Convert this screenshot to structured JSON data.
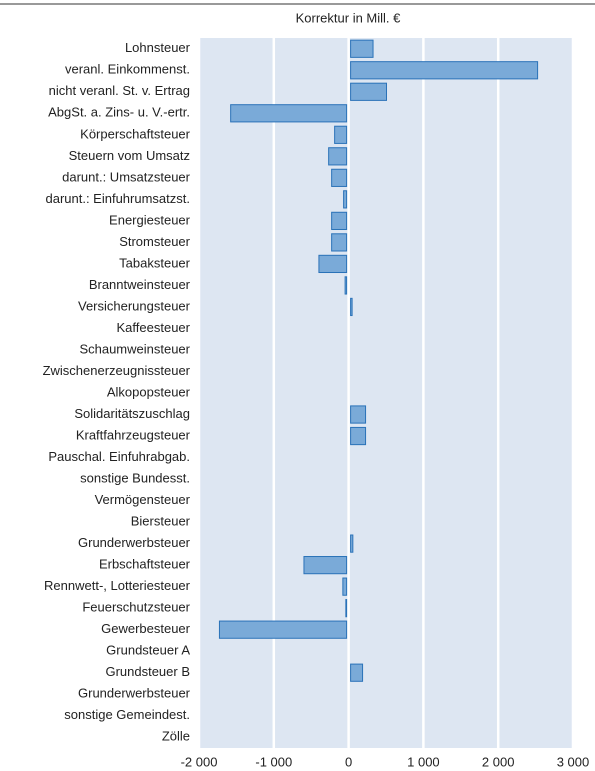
{
  "chart_data": {
    "type": "barh",
    "title": "Korrektur in Mill. €",
    "categories": [
      "Lohnsteuer",
      "veranl. Einkommenst.",
      "nicht veranl. St. v. Ertrag",
      "AbgSt. a. Zins- u. V.-ertr.",
      "Körperschaftsteuer",
      "Steuern vom Umsatz",
      "darunt.: Umsatzsteuer",
      "darunt.: Einfuhrumsatzst.",
      "Energiesteuer",
      "Stromsteuer",
      "Tabaksteuer",
      "Branntweinsteuer",
      "Versicherungsteuer",
      "Kaffeesteuer",
      "Schaumweinsteuer",
      "Zwischenerzeugnissteuer",
      "Alkopopsteuer",
      "Solidaritätszuschlag",
      "Kraftfahrzeugsteuer",
      "Pauschal. Einfuhrabgab.",
      "sonstige Bundesst.",
      "Vermögensteuer",
      "Biersteuer",
      "Grunderwerbsteuer",
      "Erbschaftsteuer",
      "Rennwett-, Lotteriesteuer",
      "Feuerschutzsteuer",
      "Gewerbesteuer",
      "Grundsteuer A",
      "Grundsteuer B",
      "Grunderwerbsteuer",
      "sonstige Gemeindest.",
      "Zölle"
    ],
    "values": [
      300,
      2500,
      480,
      -1550,
      -160,
      -240,
      -200,
      -40,
      -200,
      -200,
      -370,
      -20,
      20,
      0,
      0,
      0,
      0,
      200,
      200,
      0,
      0,
      0,
      0,
      30,
      -570,
      -50,
      -10,
      -1700,
      0,
      160,
      0,
      0,
      0
    ],
    "color": "#7aaad8",
    "edge_color": "#2a72b8",
    "background": "#dde6f2",
    "xlim": [
      -2000,
      3000
    ],
    "xticks": [
      {
        "value": -2000,
        "label": "-2 000"
      },
      {
        "value": -1000,
        "label": "-1 000"
      },
      0,
      {
        "value": 1000,
        "label": "1 000"
      },
      {
        "value": 2000,
        "label": "2 000"
      },
      {
        "value": 3000,
        "label": "3 000"
      }
    ],
    "grid": true
  }
}
